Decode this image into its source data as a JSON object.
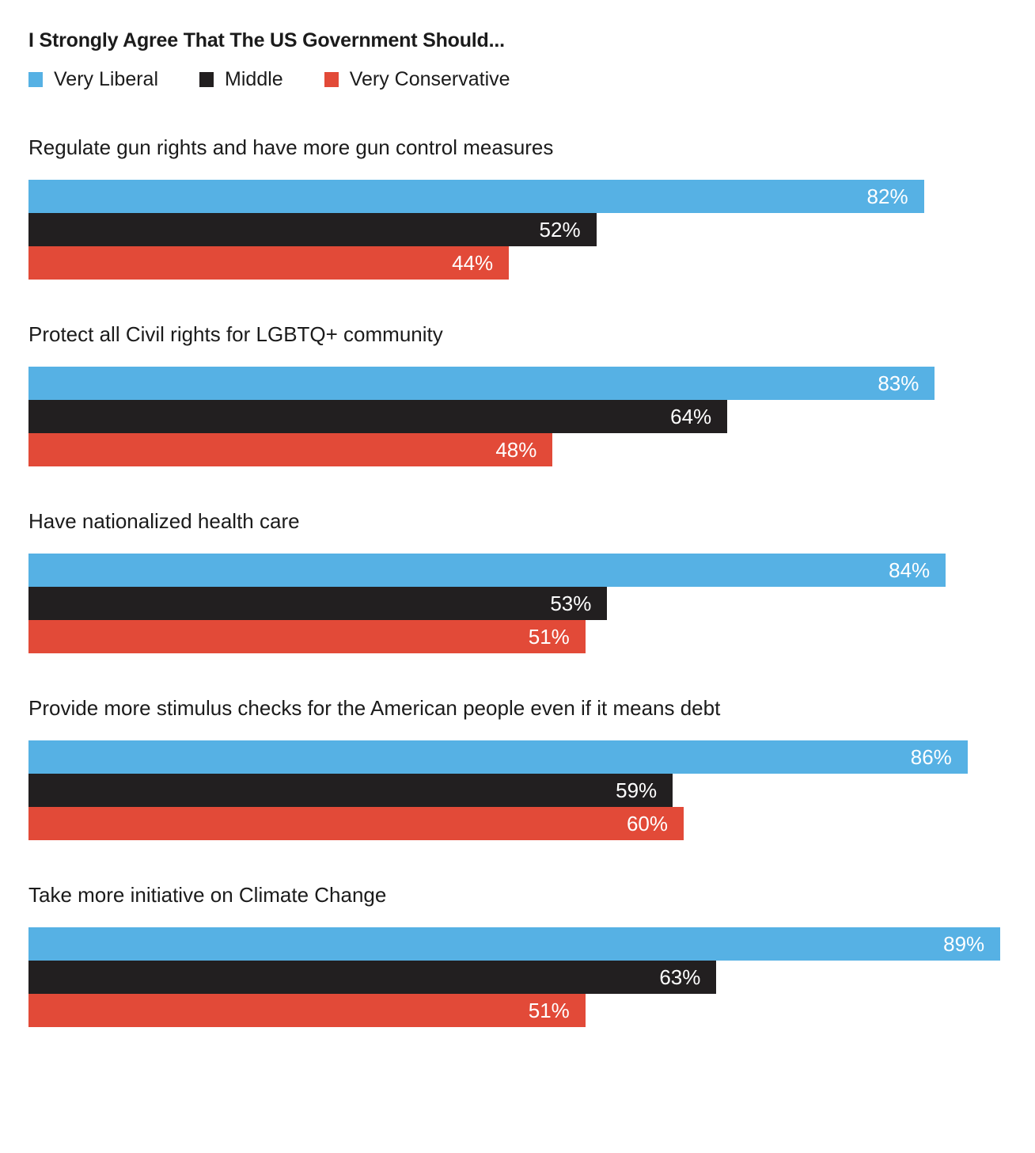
{
  "chart_data": {
    "type": "bar",
    "orientation": "horizontal",
    "title": "I Strongly Agree That The US Government Should...",
    "legend_position": "top",
    "grid": false,
    "axes_visible": false,
    "value_suffix": "%",
    "xlim": [
      0,
      92
    ],
    "categories": [
      "Regulate gun rights and have more gun control measures",
      "Protect all Civil rights for LGBTQ+ community",
      "Have nationalized health care",
      "Provide more stimulus checks for the American people even if it means debt",
      "Take more initiative on Climate Change"
    ],
    "series": [
      {
        "name": "Very Liberal",
        "color": "#56B1E4",
        "values": [
          82,
          83,
          84,
          86,
          89
        ]
      },
      {
        "name": "Middle",
        "color": "#221F20",
        "values": [
          52,
          64,
          53,
          59,
          63
        ]
      },
      {
        "name": "Very Conservative",
        "color": "#E24A38",
        "values": [
          44,
          48,
          51,
          60,
          51
        ]
      }
    ]
  }
}
